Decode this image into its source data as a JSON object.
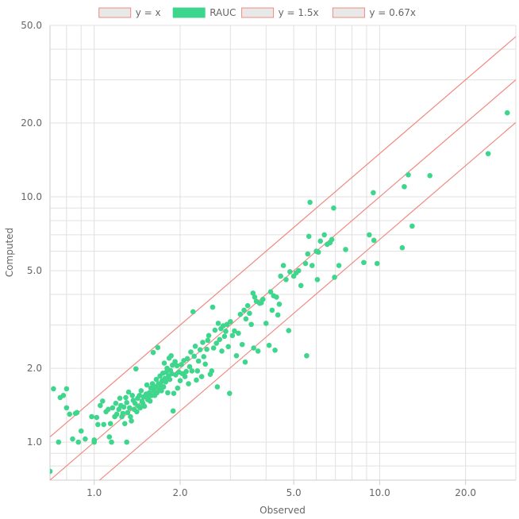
{
  "chart_data": {
    "type": "scatter",
    "xlabel": "Observed",
    "ylabel": "Computed",
    "x_scale": "log",
    "y_scale": "log",
    "xlim": [
      0.7,
      30
    ],
    "ylim": [
      0.7,
      50
    ],
    "x_ticks": [
      1,
      2,
      5,
      10,
      20
    ],
    "x_tick_labels": [
      "1.0",
      "2.0",
      "5.0",
      "10.0",
      "20.0"
    ],
    "y_ticks": [
      1,
      2,
      5,
      10,
      20,
      50
    ],
    "y_tick_labels": [
      "1.0",
      "2.0",
      "5.0",
      "10.0",
      "20.0",
      "50.0"
    ],
    "grid": true,
    "legend_position": "top-center",
    "colors": {
      "points": "#3dd68c",
      "lines": "#f08a80",
      "line_legend_fill": "#e8e8e8",
      "grid": "#e0e0e0",
      "text": "#666666"
    },
    "legend": [
      {
        "label": "y = x",
        "kind": "line"
      },
      {
        "label": "RAUC",
        "kind": "points"
      },
      {
        "label": "y = 1.5x",
        "kind": "line"
      },
      {
        "label": "y = 0.67x",
        "kind": "line"
      }
    ],
    "reference_lines": [
      {
        "label": "y = 0.67x",
        "slope": 0.67
      },
      {
        "label": "y = x",
        "slope": 1
      },
      {
        "label": "y = 1.5x",
        "slope": 1.5
      }
    ],
    "series": [
      {
        "name": "RAUC",
        "points": [
          [
            0.7,
            0.76
          ],
          [
            0.72,
            1.65
          ],
          [
            0.75,
            1.0
          ],
          [
            0.76,
            1.52
          ],
          [
            0.78,
            1.55
          ],
          [
            0.8,
            1.38
          ],
          [
            0.8,
            1.65
          ],
          [
            0.82,
            1.3
          ],
          [
            0.84,
            1.03
          ],
          [
            0.86,
            1.31
          ],
          [
            0.87,
            1.32
          ],
          [
            0.88,
            1.0
          ],
          [
            0.9,
            1.11
          ],
          [
            0.93,
            1.03
          ],
          [
            0.98,
            1.27
          ],
          [
            1.0,
            1.0
          ],
          [
            1.0,
            1.02
          ],
          [
            1.02,
            1.26
          ],
          [
            1.03,
            1.18
          ],
          [
            1.05,
            1.41
          ],
          [
            1.07,
            1.47
          ],
          [
            1.08,
            1.18
          ],
          [
            1.1,
            1.33
          ],
          [
            1.12,
            1.36
          ],
          [
            1.13,
            1.05
          ],
          [
            1.14,
            1.19
          ],
          [
            1.15,
            1.0
          ],
          [
            1.16,
            1.38
          ],
          [
            1.18,
            1.27
          ],
          [
            1.19,
            1.44
          ],
          [
            1.2,
            1.3
          ],
          [
            1.22,
            1.36
          ],
          [
            1.23,
            1.51
          ],
          [
            1.24,
            1.41
          ],
          [
            1.25,
            1.27
          ],
          [
            1.26,
            1.31
          ],
          [
            1.27,
            1.39
          ],
          [
            1.28,
            1.19
          ],
          [
            1.29,
            1.52
          ],
          [
            1.3,
            1.45
          ],
          [
            1.3,
            1.0
          ],
          [
            1.31,
            1.32
          ],
          [
            1.32,
            1.6
          ],
          [
            1.33,
            1.38
          ],
          [
            1.34,
            1.27
          ],
          [
            1.35,
            1.22
          ],
          [
            1.36,
            1.55
          ],
          [
            1.37,
            1.48
          ],
          [
            1.38,
            1.36
          ],
          [
            1.39,
            1.44
          ],
          [
            1.4,
            1.99
          ],
          [
            1.41,
            1.33
          ],
          [
            1.42,
            1.51
          ],
          [
            1.43,
            1.4
          ],
          [
            1.44,
            1.55
          ],
          [
            1.45,
            1.38
          ],
          [
            1.46,
            1.62
          ],
          [
            1.47,
            1.47
          ],
          [
            1.48,
            1.44
          ],
          [
            1.49,
            1.53
          ],
          [
            1.5,
            1.4
          ],
          [
            1.52,
            1.57
          ],
          [
            1.53,
            1.71
          ],
          [
            1.54,
            1.49
          ],
          [
            1.55,
            1.52
          ],
          [
            1.56,
            1.59
          ],
          [
            1.57,
            1.47
          ],
          [
            1.58,
            1.66
          ],
          [
            1.59,
            1.55
          ],
          [
            1.6,
            1.73
          ],
          [
            1.61,
            2.32
          ],
          [
            1.62,
            1.62
          ],
          [
            1.63,
            1.55
          ],
          [
            1.64,
            1.68
          ],
          [
            1.65,
            1.8
          ],
          [
            1.66,
            1.59
          ],
          [
            1.67,
            2.43
          ],
          [
            1.68,
            1.73
          ],
          [
            1.69,
            1.64
          ],
          [
            1.7,
            1.86
          ],
          [
            1.71,
            1.71
          ],
          [
            1.72,
            1.62
          ],
          [
            1.73,
            1.78
          ],
          [
            1.74,
            1.91
          ],
          [
            1.75,
            1.68
          ],
          [
            1.76,
            2.1
          ],
          [
            1.77,
            1.82
          ],
          [
            1.78,
            1.76
          ],
          [
            1.79,
            1.93
          ],
          [
            1.8,
            2.0
          ],
          [
            1.81,
            1.59
          ],
          [
            1.82,
            1.86
          ],
          [
            1.83,
            2.2
          ],
          [
            1.84,
            1.8
          ],
          [
            1.85,
            1.96
          ],
          [
            1.86,
            2.25
          ],
          [
            1.87,
            1.9
          ],
          [
            1.88,
            2.06
          ],
          [
            1.89,
            1.34
          ],
          [
            1.9,
            1.58
          ],
          [
            1.92,
            2.13
          ],
          [
            1.93,
            1.88
          ],
          [
            1.95,
            2.05
          ],
          [
            1.96,
            1.66
          ],
          [
            1.98,
            1.93
          ],
          [
            2.0,
            1.78
          ],
          [
            2.02,
            2.07
          ],
          [
            2.04,
            1.9
          ],
          [
            2.06,
            2.15
          ],
          [
            2.08,
            1.85
          ],
          [
            2.1,
            1.94
          ],
          [
            2.12,
            2.19
          ],
          [
            2.14,
            1.73
          ],
          [
            2.16,
            2.03
          ],
          [
            2.18,
            2.33
          ],
          [
            2.2,
            1.95
          ],
          [
            2.22,
            3.4
          ],
          [
            2.24,
            2.24
          ],
          [
            2.26,
            2.46
          ],
          [
            2.28,
            1.79
          ],
          [
            2.3,
            1.95
          ],
          [
            2.32,
            2.14
          ],
          [
            2.35,
            2.38
          ],
          [
            2.38,
            1.85
          ],
          [
            2.4,
            2.55
          ],
          [
            2.42,
            2.23
          ],
          [
            2.45,
            2.08
          ],
          [
            2.48,
            2.39
          ],
          [
            2.5,
            2.6
          ],
          [
            2.52,
            2.72
          ],
          [
            2.55,
            1.89
          ],
          [
            2.58,
            1.95
          ],
          [
            2.6,
            3.55
          ],
          [
            2.62,
            2.42
          ],
          [
            2.65,
            2.86
          ],
          [
            2.68,
            2.53
          ],
          [
            2.7,
            1.68
          ],
          [
            2.72,
            3.05
          ],
          [
            2.75,
            2.62
          ],
          [
            2.78,
            2.9
          ],
          [
            2.8,
            2.35
          ],
          [
            2.83,
            2.98
          ],
          [
            2.86,
            2.7
          ],
          [
            2.89,
            2.83
          ],
          [
            2.92,
            3.02
          ],
          [
            2.95,
            2.45
          ],
          [
            2.98,
            1.58
          ],
          [
            3.0,
            3.1
          ],
          [
            3.05,
            2.72
          ],
          [
            3.1,
            2.84
          ],
          [
            3.15,
            2.25
          ],
          [
            3.2,
            2.78
          ],
          [
            3.25,
            3.32
          ],
          [
            3.3,
            2.5
          ],
          [
            3.35,
            3.45
          ],
          [
            3.38,
            2.12
          ],
          [
            3.4,
            3.18
          ],
          [
            3.45,
            3.6
          ],
          [
            3.5,
            3.35
          ],
          [
            3.55,
            3.02
          ],
          [
            3.6,
            4.05
          ],
          [
            3.62,
            2.42
          ],
          [
            3.65,
            3.9
          ],
          [
            3.7,
            3.75
          ],
          [
            3.75,
            2.35
          ],
          [
            3.8,
            3.68
          ],
          [
            3.85,
            3.7
          ],
          [
            3.9,
            3.82
          ],
          [
            4.0,
            3.05
          ],
          [
            4.1,
            2.48
          ],
          [
            4.15,
            4.1
          ],
          [
            4.2,
            3.45
          ],
          [
            4.25,
            3.95
          ],
          [
            4.3,
            2.37
          ],
          [
            4.35,
            3.9
          ],
          [
            4.4,
            3.3
          ],
          [
            4.45,
            3.65
          ],
          [
            4.5,
            4.75
          ],
          [
            4.6,
            5.25
          ],
          [
            4.7,
            4.6
          ],
          [
            4.8,
            2.85
          ],
          [
            4.85,
            4.95
          ],
          [
            5.0,
            4.75
          ],
          [
            5.1,
            4.9
          ],
          [
            5.2,
            5.0
          ],
          [
            5.3,
            4.35
          ],
          [
            5.5,
            5.35
          ],
          [
            5.55,
            2.25
          ],
          [
            5.6,
            5.85
          ],
          [
            5.65,
            6.9
          ],
          [
            5.7,
            9.5
          ],
          [
            5.8,
            5.25
          ],
          [
            6.0,
            6.0
          ],
          [
            6.05,
            4.6
          ],
          [
            6.1,
            5.95
          ],
          [
            6.2,
            6.6
          ],
          [
            6.4,
            7.0
          ],
          [
            6.55,
            6.4
          ],
          [
            6.7,
            6.5
          ],
          [
            6.8,
            6.7
          ],
          [
            6.9,
            9.0
          ],
          [
            6.95,
            4.7
          ],
          [
            7.2,
            5.25
          ],
          [
            7.6,
            6.1
          ],
          [
            8.8,
            5.4
          ],
          [
            9.2,
            7.0
          ],
          [
            9.5,
            10.4
          ],
          [
            9.55,
            6.65
          ],
          [
            9.8,
            5.35
          ],
          [
            12.0,
            6.2
          ],
          [
            12.2,
            11.0
          ],
          [
            12.6,
            12.3
          ],
          [
            13.0,
            7.6
          ],
          [
            15.0,
            12.2
          ],
          [
            24.0,
            15.0
          ],
          [
            28.0,
            22.0
          ]
        ]
      }
    ]
  }
}
